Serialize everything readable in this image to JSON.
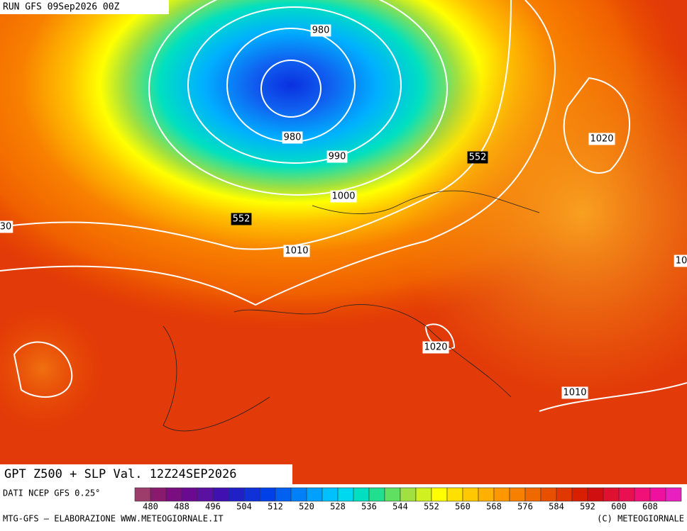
{
  "header": {
    "run": "RUN GFS 09Sep2026 00Z"
  },
  "map": {
    "contour_labels": [
      980,
      980,
      990,
      1000,
      1010,
      1020,
      1020,
      1010,
      552,
      552,
      30,
      10
    ]
  },
  "footer": {
    "title": "GPT Z500 + SLP Val. 12Z24SEP2026",
    "source": "DATI NCEP GFS 0.25°",
    "credit_left": "MTG-GFS — ELABORAZIONE WWW.METEOGIORNALE.IT",
    "credit_right": "(C) METEOGIORNALE"
  },
  "colorbar": {
    "colors": [
      "#9c3d6b",
      "#8a1a6e",
      "#7a0d80",
      "#6a0a90",
      "#5a10a0",
      "#4010b0",
      "#2020c8",
      "#1030d8",
      "#0040e8",
      "#0060f0",
      "#0080f8",
      "#00a0ff",
      "#00c0ff",
      "#00d8f0",
      "#00e0c0",
      "#20e090",
      "#60e060",
      "#a0e040",
      "#d0f020",
      "#ffff00",
      "#ffe000",
      "#ffc800",
      "#ffb000",
      "#ff9800",
      "#f88000",
      "#f06800",
      "#e85000",
      "#e03800",
      "#d82000",
      "#d01010",
      "#e01030",
      "#e81050",
      "#f01078",
      "#f010a0",
      "#e820c0"
    ],
    "labels": [
      480,
      488,
      496,
      504,
      512,
      520,
      528,
      536,
      544,
      552,
      560,
      568,
      576,
      584,
      592,
      600,
      608
    ]
  }
}
